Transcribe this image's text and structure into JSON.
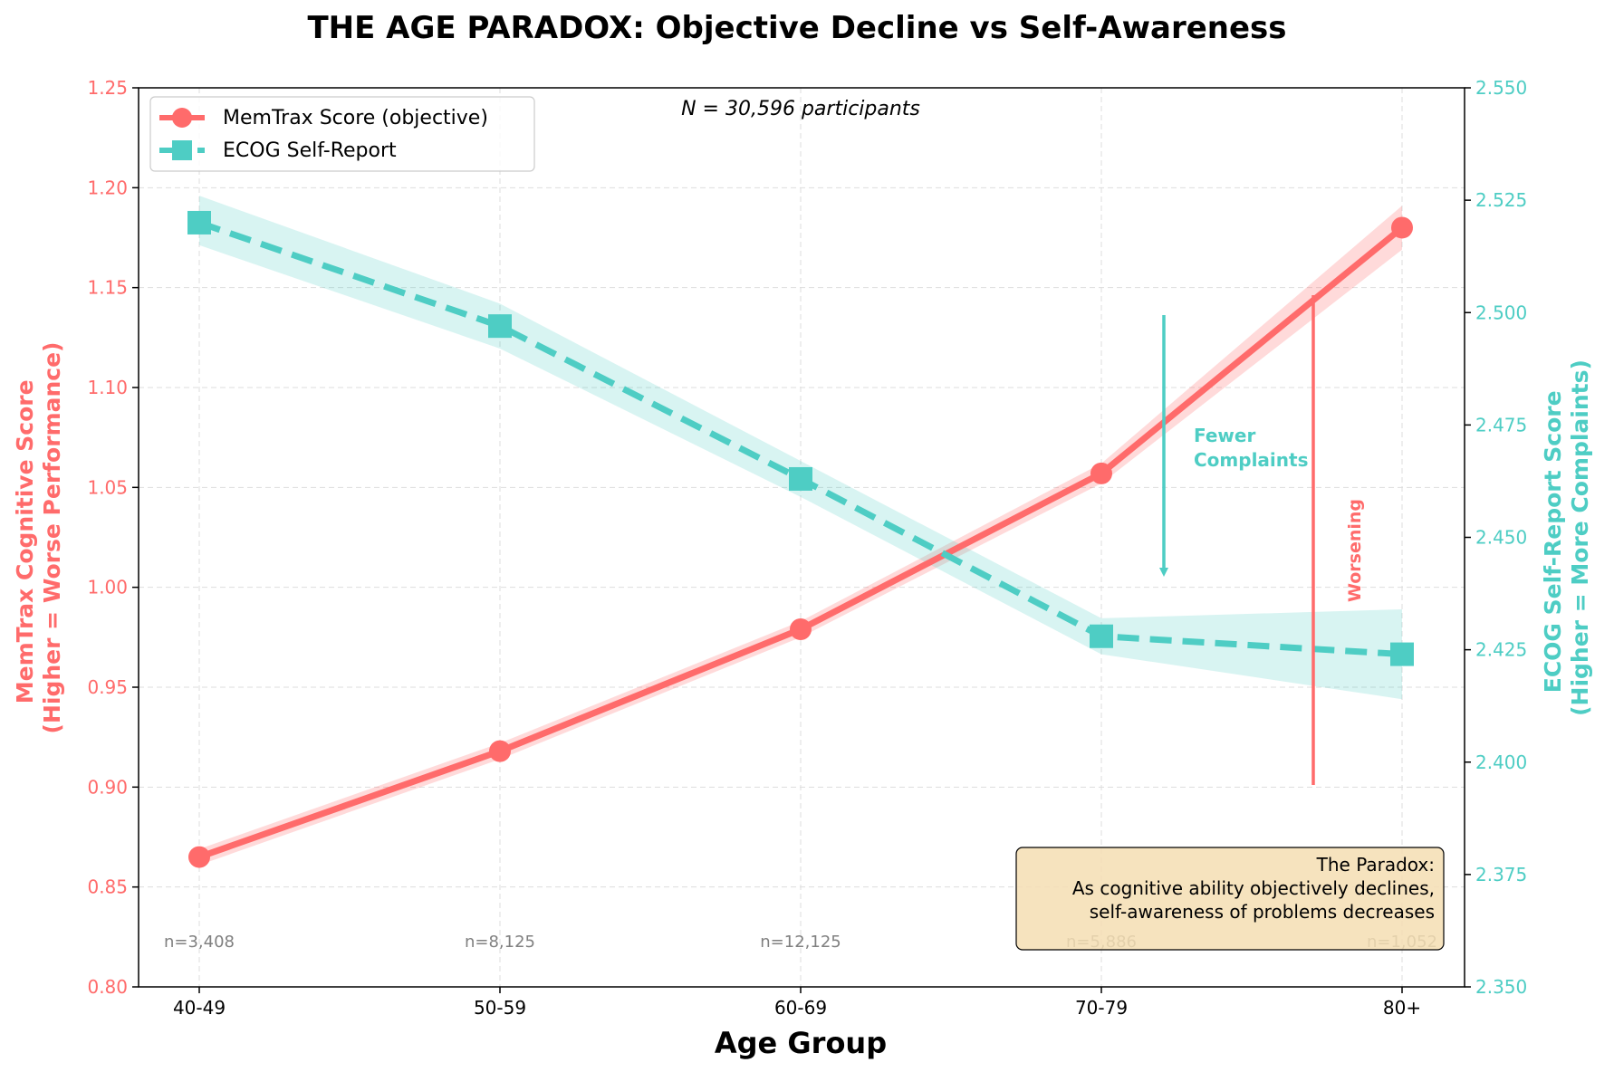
{
  "chart_data": {
    "type": "line",
    "title": "THE AGE PARADOX: Objective Decline vs Self-Awareness",
    "xlabel": "Age Group",
    "categories": [
      "40-49",
      "50-59",
      "60-69",
      "70-79",
      "80+"
    ],
    "y_left": {
      "label_line1": "MemTrax Cognitive Score",
      "label_line2": "(Higher = Worse Performance)",
      "range": [
        0.8,
        1.25
      ],
      "ticks": [
        "0.80",
        "0.85",
        "0.90",
        "0.95",
        "1.00",
        "1.05",
        "1.10",
        "1.15",
        "1.20",
        "1.25"
      ],
      "color": "#ff6b6b"
    },
    "y_right": {
      "label_line1": "ECOG Self-Report Score",
      "label_line2": "(Higher = More Complaints)",
      "range": [
        2.35,
        2.55
      ],
      "ticks": [
        "2.350",
        "2.375",
        "2.400",
        "2.425",
        "2.450",
        "2.475",
        "2.500",
        "2.525",
        "2.550"
      ],
      "color": "#4ecdc4"
    },
    "series": [
      {
        "name": "MemTrax Score (objective)",
        "axis": "left",
        "color": "#ff6b6b",
        "values": [
          0.865,
          0.918,
          0.979,
          1.057,
          1.18
        ],
        "ci_low": [
          0.861,
          0.914,
          0.975,
          1.052,
          1.169
        ],
        "ci_high": [
          0.869,
          0.922,
          0.983,
          1.062,
          1.191
        ]
      },
      {
        "name": "ECOG Self-Report",
        "axis": "right",
        "color": "#4ecdc4",
        "values": [
          2.52,
          2.497,
          2.463,
          2.428,
          2.424
        ],
        "ci_low": [
          2.515,
          2.492,
          2.459,
          2.424,
          2.414
        ],
        "ci_high": [
          2.526,
          2.502,
          2.467,
          2.432,
          2.434
        ]
      }
    ],
    "sample_sizes": [
      "n=3,408",
      "n=8,125",
      "n=12,125",
      "n=5,886",
      "n=1,052"
    ],
    "total_n": "N = 30,596 participants",
    "annotations": {
      "fewer_complaints_line1": "Fewer",
      "fewer_complaints_line2": "Complaints",
      "worsening": "Worsening",
      "paradox_line1": "The Paradox:",
      "paradox_line2": "As cognitive ability objectively declines,",
      "paradox_line3": "self-awareness of problems decreases"
    },
    "legend_position": "top-left",
    "grid": true
  }
}
